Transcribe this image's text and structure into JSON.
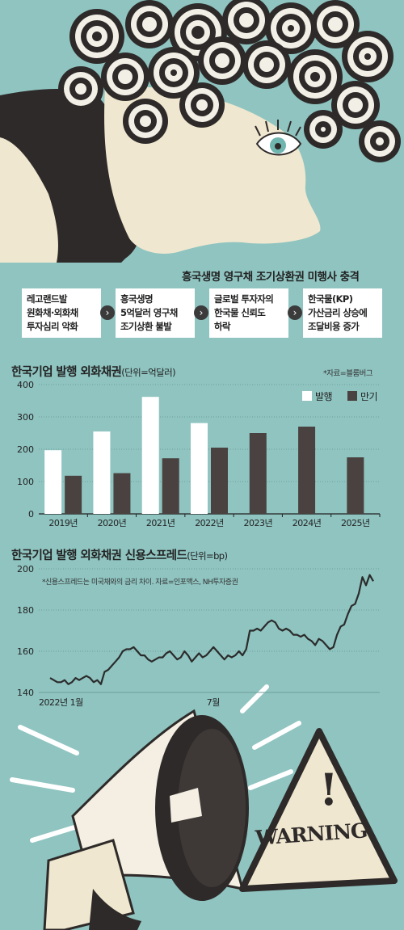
{
  "headline": "흥국생명 영구채 조기상환권 미행사 충격",
  "flow": [
    {
      "lines": [
        "레고랜드발",
        "원화채·외화채",
        "투자심리 악화"
      ]
    },
    {
      "lines": [
        "흥국생명",
        "5억달러 영구채",
        "조기상환 불발"
      ]
    },
    {
      "lines": [
        "글로벌 투자자의",
        "한국물 신뢰도",
        "하락"
      ]
    },
    {
      "lines": [
        "한국물(KP)",
        "가산금리 상승에",
        "조달비용 증가"
      ]
    }
  ],
  "flow_arrow_glyph": "›",
  "colors": {
    "background": "#8fc4c0",
    "issue_bar": "#ffffff",
    "maturity_bar": "#4a4240",
    "spread_line": "#2b2b2b",
    "dark": "#2e2a29",
    "cream": "#efe7cf"
  },
  "chart_data": [
    {
      "type": "bar",
      "title": "한국기업 발행 외화채권",
      "unit": "(단위=억달러)",
      "source": "*자료=블룸버그",
      "categories": [
        "2019년",
        "2020년",
        "2021년",
        "2022년",
        "2023년",
        "2024년",
        "2025년"
      ],
      "series": [
        {
          "name": "발행",
          "values": [
            197,
            255,
            362,
            281,
            null,
            null,
            null
          ],
          "color": "#ffffff"
        },
        {
          "name": "만기",
          "values": [
            118,
            126,
            172,
            205,
            250,
            270,
            175
          ],
          "color": "#4a4240"
        }
      ],
      "ylim": [
        0,
        400
      ],
      "yticks": [
        0,
        100,
        200,
        300,
        400
      ],
      "legend": "top-right",
      "grid": true
    },
    {
      "type": "line",
      "title": "한국기업 발행 외화채권 신용스프레드",
      "unit": "(단위=bp)",
      "note": "*신용스프레드는 미국채와의 금리 차이. 자료=인포맥스, NH투자증권",
      "xtick_labels": [
        "2022년 1월",
        "7월"
      ],
      "xtick_index": [
        0,
        44
      ],
      "ylim": [
        140,
        200
      ],
      "yticks": [
        140,
        160,
        180,
        200
      ],
      "grid": true,
      "values": [
        147,
        146,
        145,
        145,
        146,
        144,
        145,
        147,
        146,
        147,
        148,
        147,
        145,
        146,
        144,
        150,
        151,
        153,
        155,
        157,
        160,
        161,
        161,
        162,
        160,
        158,
        158,
        156,
        155,
        156,
        157,
        157,
        159,
        160,
        158,
        156,
        157,
        160,
        158,
        155,
        157,
        159,
        157,
        158,
        160,
        162,
        160,
        158,
        156,
        158,
        157,
        158,
        160,
        158,
        161,
        170,
        170,
        171,
        170,
        172,
        174,
        175,
        174,
        171,
        170,
        171,
        170,
        168,
        168,
        167,
        168,
        166,
        165,
        163,
        166,
        165,
        163,
        161,
        162,
        168,
        172,
        173,
        178,
        182,
        183,
        188,
        196,
        192,
        197,
        194
      ]
    }
  ],
  "warning_sign": {
    "text": "WARNING",
    "mark": "!"
  }
}
